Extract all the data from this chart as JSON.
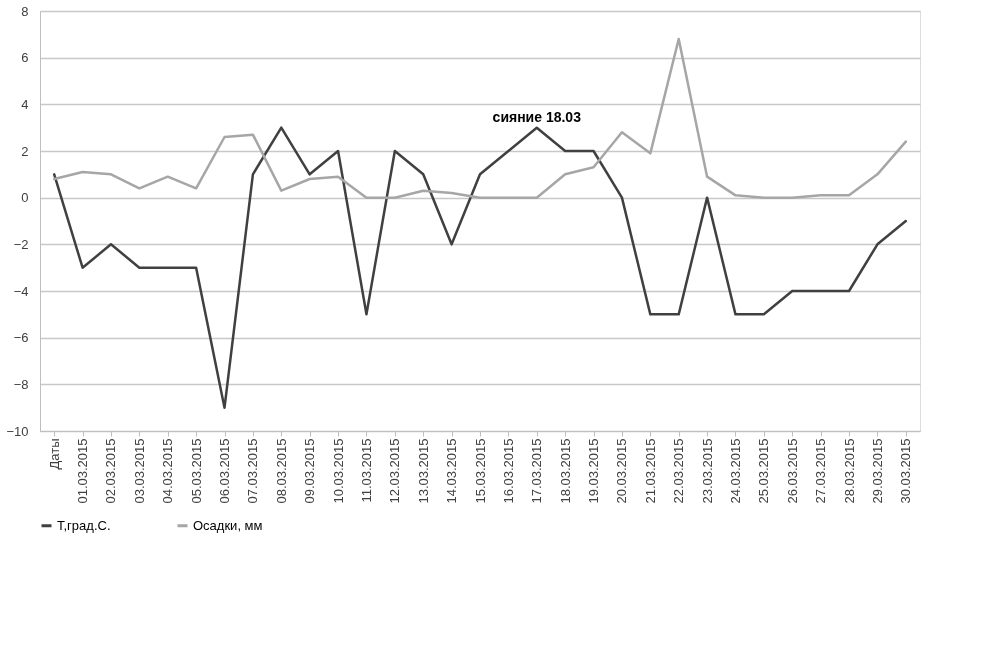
{
  "chart_data": {
    "type": "line",
    "categories": [
      "Даты",
      "01.03.2015",
      "02.03.2015",
      "03.03.2015",
      "04.03.2015",
      "05.03.2015",
      "06.03.2015",
      "07.03.2015",
      "08.03.2015",
      "09.03.2015",
      "10.03.2015",
      "11.03.2015",
      "12.03.2015",
      "13.03.2015",
      "14.03.2015",
      "15.03.2015",
      "16.03.2015",
      "17.03.2015",
      "18.03.2015",
      "19.03.2015",
      "20.03.2015",
      "21.03.2015",
      "22.03.2015",
      "23.03.2015",
      "24.03.2015",
      "25.03.2015",
      "26.03.2015",
      "27.03.2015",
      "28.03.2015",
      "29.03.2015",
      "30.03.2015"
    ],
    "series": [
      {
        "name": "Т,град.С.",
        "color": "#404040",
        "values": [
          1,
          -3,
          -2,
          -3,
          -3,
          -3,
          -9,
          1,
          3,
          1,
          2,
          -5,
          2,
          1,
          -2,
          1,
          2,
          3,
          2,
          2,
          0,
          -5,
          -5,
          0,
          -5,
          -5,
          -4,
          -4,
          -4,
          -2,
          -1
        ]
      },
      {
        "name": "Осадки, мм",
        "color": "#a6a6a6",
        "values": [
          0.8,
          1.1,
          1.0,
          0.4,
          0.9,
          0.4,
          2.6,
          2.7,
          0.3,
          0.8,
          0.9,
          0,
          0,
          0.3,
          0.2,
          0,
          0,
          0,
          1.0,
          1.3,
          2.8,
          1.9,
          6.8,
          0.9,
          0.1,
          0,
          0,
          0.1,
          0.1,
          1.0,
          2.4
        ]
      }
    ],
    "ylim": [
      -10,
      8
    ],
    "yticks": [
      -10,
      -8,
      -6,
      -4,
      -2,
      0,
      2,
      4,
      6,
      8
    ],
    "grid": "y",
    "legend": "bottom",
    "marker": "none",
    "line_style": "solid",
    "annotations": [
      {
        "text": "сияние 18.03",
        "x": "17.03.2015",
        "y": 3
      }
    ]
  }
}
